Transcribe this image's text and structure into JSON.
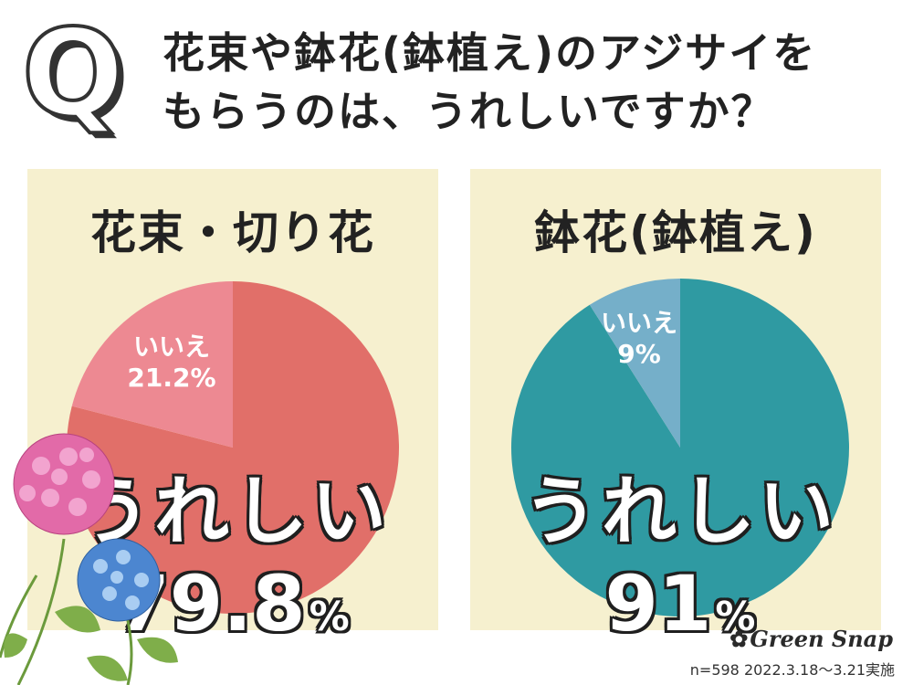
{
  "header": {
    "q_letter": "Q",
    "question_line1": "花束や鉢花(鉢植え)のアジサイを",
    "question_line2": "もらうのは、うれしいですか？"
  },
  "chart_data": [
    {
      "type": "pie",
      "title": "花束・切り花",
      "slices": [
        {
          "label": "うれしい",
          "value": 79.8,
          "display": "79.8",
          "color": "#e16f69"
        },
        {
          "label": "いいえ",
          "value": 21.2,
          "display": "21.2%",
          "color": "#ed8992"
        }
      ],
      "percent_sign": "%"
    },
    {
      "type": "pie",
      "title": "鉢花(鉢植え)",
      "slices": [
        {
          "label": "うれしい",
          "value": 91,
          "display": "91",
          "color": "#2f9aa2"
        },
        {
          "label": "いいえ",
          "value": 9,
          "display": "9%",
          "color": "#75afc9"
        }
      ],
      "percent_sign": "%"
    }
  ],
  "footer": {
    "brand": "Green Snap",
    "note": "n=598  2022.3.18〜3.21実施"
  }
}
